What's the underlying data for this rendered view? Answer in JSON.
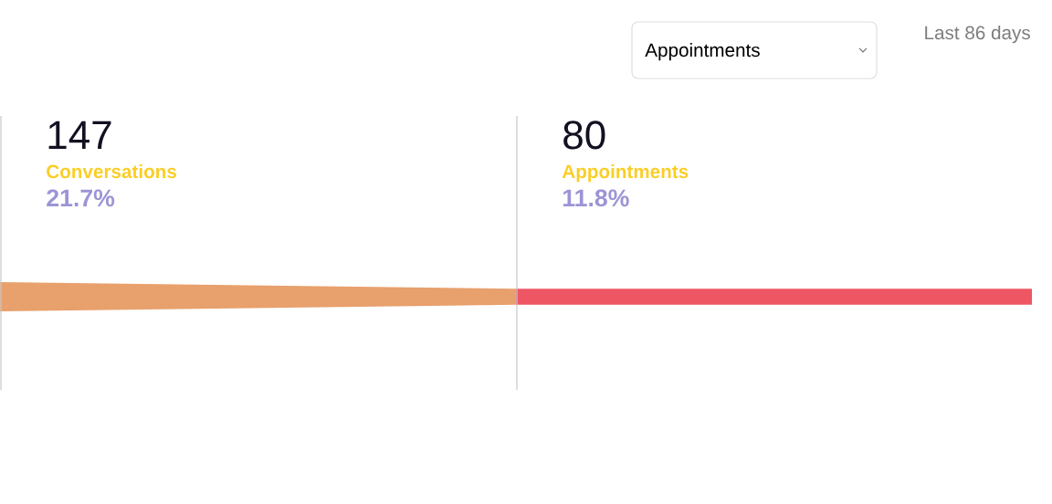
{
  "chart_data": {
    "type": "other",
    "categories": [
      "Conversations",
      "Appointments"
    ],
    "values": [
      147,
      80
    ],
    "data_labels": true,
    "colors": [
      "#e8a06c",
      "#ee5663"
    ],
    "annotations": [
      "21.7%",
      "11.8%",
      "Appointments",
      "Last 86 days"
    ]
  }
}
